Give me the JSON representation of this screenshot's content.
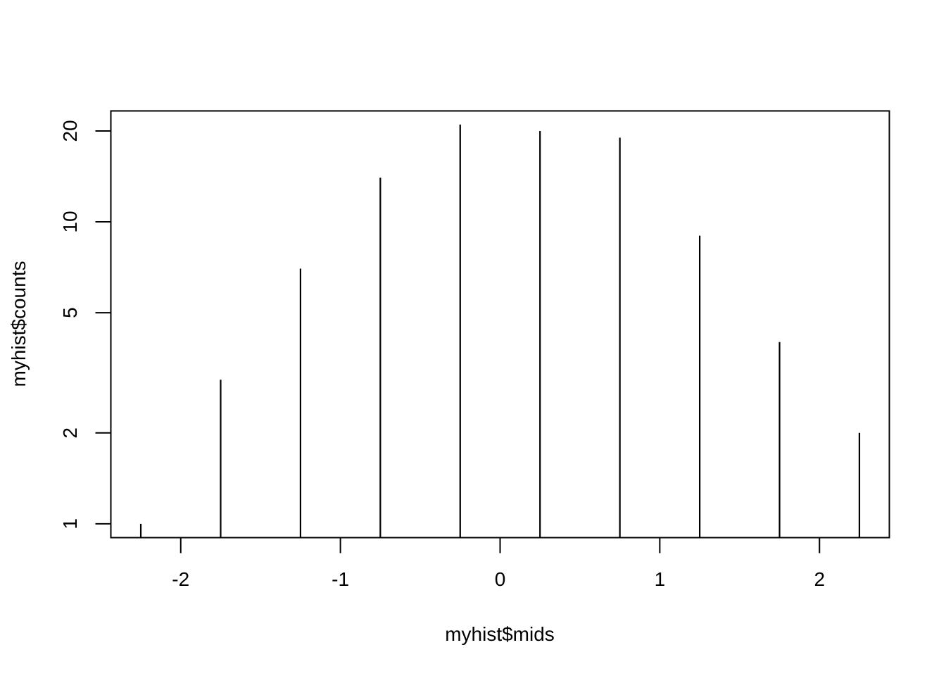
{
  "chart_data": {
    "type": "bar",
    "style": "vertical lines (R plot type h)",
    "title": "",
    "xlabel": "myhist$mids",
    "ylabel": "myhist$counts",
    "y_scale": "log",
    "grid": false,
    "x": [
      -2.25,
      -1.75,
      -1.25,
      -0.75,
      -0.25,
      0.25,
      0.75,
      1.25,
      1.75,
      2.25
    ],
    "values": [
      1,
      3,
      7,
      14,
      21,
      20,
      19,
      9,
      4,
      2
    ],
    "xlim": [
      -2.4375,
      2.4375
    ],
    "ylim": [
      0.9,
      23.3
    ],
    "x_ticks": [
      -2,
      -1,
      0,
      1,
      2
    ],
    "x_tick_labels": [
      "-2",
      "-1",
      "0",
      "1",
      "2"
    ],
    "y_ticks": [
      1,
      2,
      5,
      10,
      20
    ],
    "y_tick_labels": [
      "1",
      "2",
      "5",
      "10",
      "20"
    ],
    "color": "#000000"
  }
}
